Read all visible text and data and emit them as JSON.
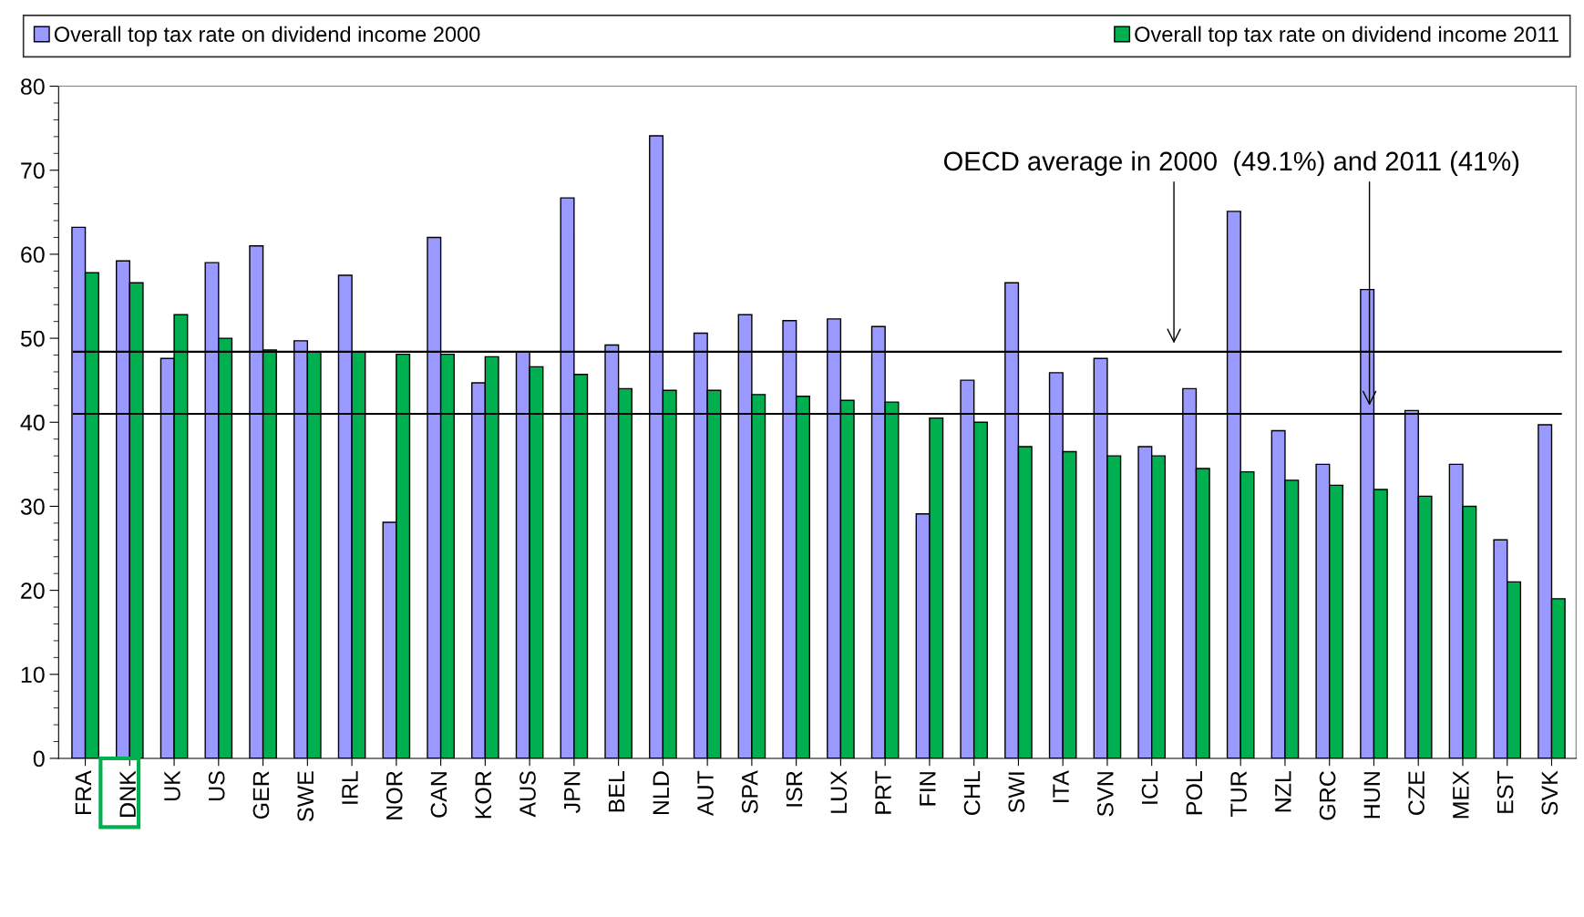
{
  "chart_data": {
    "type": "bar",
    "categories": [
      "FRA",
      "DNK",
      "UK",
      "US",
      "GER",
      "SWE",
      "IRL",
      "NOR",
      "CAN",
      "KOR",
      "AUS",
      "JPN",
      "BEL",
      "NLD",
      "AUT",
      "SPA",
      "ISR",
      "LUX",
      "PRT",
      "FIN",
      "CHL",
      "SWI",
      "ITA",
      "SVN",
      "ICL",
      "POL",
      "TUR",
      "NZL",
      "GRC",
      "HUN",
      "CZE",
      "MEX",
      "EST",
      "SVK"
    ],
    "series": [
      {
        "name": "Overall top tax rate on dividend income 2000",
        "color": "#9999ff",
        "values": [
          63.2,
          59.2,
          47.6,
          59.0,
          61.0,
          49.7,
          57.5,
          28.1,
          62.0,
          44.7,
          48.4,
          66.7,
          49.2,
          74.1,
          50.6,
          52.8,
          52.1,
          52.3,
          51.4,
          29.1,
          45.0,
          56.6,
          45.9,
          47.6,
          37.1,
          44.0,
          65.1,
          39.0,
          35.0,
          55.8,
          41.4,
          35.0,
          26.0,
          39.7
        ]
      },
      {
        "name": "Overall top tax rate on dividend income 2011",
        "color": "#00b050",
        "values": [
          57.8,
          56.6,
          52.8,
          50.0,
          48.6,
          48.4,
          48.4,
          48.1,
          48.1,
          47.8,
          46.6,
          45.7,
          44.0,
          43.8,
          43.8,
          43.3,
          43.1,
          42.6,
          42.4,
          40.5,
          40.0,
          37.1,
          36.5,
          36.0,
          36.0,
          34.5,
          34.1,
          33.1,
          32.5,
          32.0,
          31.2,
          30.0,
          21.0,
          19.0
        ]
      }
    ],
    "ylim": [
      0,
      80
    ],
    "yticks": [
      0,
      10,
      20,
      30,
      40,
      50,
      60,
      70,
      80
    ],
    "ref_lines": [
      {
        "axis": "y",
        "value": 48.4,
        "color": "#000000"
      },
      {
        "axis": "y",
        "value": 41,
        "color": "#000000"
      }
    ],
    "annotations": [
      "OECD average in 2000  (49.1%) and 2011 (41%)"
    ],
    "grid": false,
    "legend": "top"
  }
}
